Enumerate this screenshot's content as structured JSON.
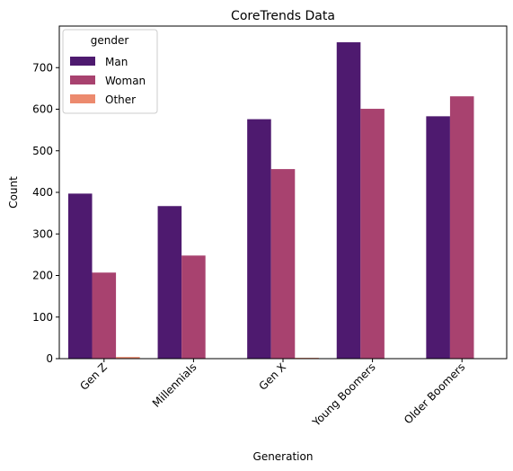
{
  "chart_data": {
    "type": "bar",
    "title": "CoreTrends Data",
    "xlabel": "Generation",
    "ylabel": "Count",
    "categories": [
      "Gen Z",
      "Millennials",
      "Gen X",
      "Young Boomers",
      "Older Boomers"
    ],
    "ylim": [
      0,
      800
    ],
    "yticks": [
      0,
      100,
      200,
      300,
      400,
      500,
      600,
      700
    ],
    "legend_title": "gender",
    "legend_position": "top-left",
    "grid": false,
    "series": [
      {
        "name": "Man",
        "color": "#4e1a6f",
        "values": [
          397,
          367,
          576,
          761,
          583
        ]
      },
      {
        "name": "Woman",
        "color": "#a8426f",
        "values": [
          207,
          248,
          456,
          601,
          631
        ]
      },
      {
        "name": "Other",
        "color": "#ec8a6e",
        "values": [
          4,
          0,
          2,
          0,
          0
        ]
      }
    ]
  }
}
